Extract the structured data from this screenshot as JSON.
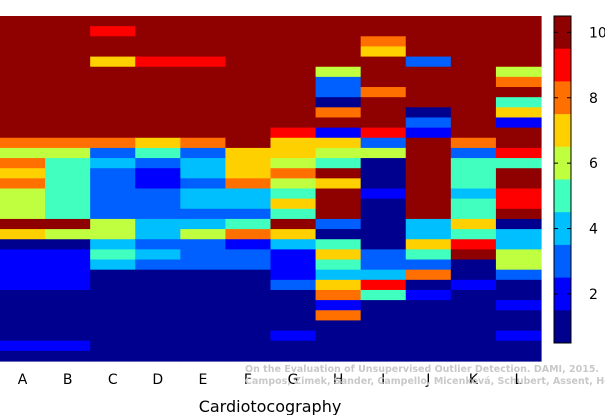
{
  "chart_data": {
    "type": "heatmap",
    "xlabel": "Cardiotocography",
    "columns": [
      "A",
      "B",
      "C",
      "D",
      "E",
      "F",
      "G",
      "H",
      "I",
      "J",
      "K",
      "L"
    ],
    "colorbar": {
      "ticks": [
        2,
        4,
        6,
        8,
        10
      ],
      "min": 0.5,
      "max": 10.5,
      "colormap": "jet"
    },
    "credit": [
      "On the Evaluation of Unsupervised Outlier Detection. DAMI, 2015.",
      "Campos, Zimek, Sander, Campello, Micenková, Schubert, Assent, Houle"
    ],
    "row_count": 34,
    "cells": [
      [
        10,
        10,
        10,
        10,
        10,
        10,
        10,
        10,
        10,
        10,
        10,
        10
      ],
      [
        10,
        10,
        9,
        10,
        10,
        10,
        10,
        10,
        10,
        10,
        10,
        10
      ],
      [
        10,
        10,
        10,
        10,
        10,
        10,
        10,
        10,
        8,
        10,
        10,
        10
      ],
      [
        10,
        10,
        10,
        10,
        10,
        10,
        10,
        10,
        7,
        10,
        10,
        10
      ],
      [
        10,
        10,
        7,
        9,
        9,
        10,
        10,
        10,
        10,
        3,
        10,
        10
      ],
      [
        10,
        10,
        10,
        10,
        10,
        10,
        10,
        6,
        10,
        10,
        10,
        6
      ],
      [
        10,
        10,
        10,
        10,
        10,
        10,
        10,
        3,
        10,
        10,
        10,
        8
      ],
      [
        10,
        10,
        10,
        10,
        10,
        10,
        10,
        3,
        8,
        10,
        10,
        10
      ],
      [
        10,
        10,
        10,
        10,
        10,
        10,
        10,
        1,
        10,
        10,
        10,
        5
      ],
      [
        10,
        10,
        10,
        10,
        10,
        10,
        10,
        8,
        10,
        1,
        10,
        7
      ],
      [
        10,
        10,
        10,
        10,
        10,
        10,
        10,
        10,
        10,
        3,
        10,
        2
      ],
      [
        10,
        10,
        10,
        10,
        10,
        10,
        9,
        2,
        9,
        2,
        10,
        10
      ],
      [
        8,
        8,
        8,
        7,
        8,
        10,
        7,
        7,
        3,
        10,
        8,
        10
      ],
      [
        6,
        6,
        3,
        5,
        3,
        7,
        7,
        6,
        6,
        10,
        3,
        9
      ],
      [
        8,
        5,
        4,
        3,
        4,
        7,
        6,
        5,
        1,
        10,
        5,
        5
      ],
      [
        7,
        5,
        3,
        2,
        4,
        7,
        8,
        10,
        1,
        10,
        5,
        10
      ],
      [
        8,
        5,
        3,
        2,
        3,
        8,
        6,
        7,
        1,
        10,
        5,
        10
      ],
      [
        6,
        5,
        3,
        3,
        4,
        4,
        5,
        10,
        2,
        10,
        4,
        9
      ],
      [
        6,
        5,
        3,
        3,
        4,
        4,
        7,
        10,
        1,
        10,
        5,
        9
      ],
      [
        6,
        5,
        3,
        3,
        3,
        3,
        5,
        10,
        1,
        10,
        5,
        10
      ],
      [
        10,
        10,
        6,
        4,
        4,
        5,
        10,
        3,
        1,
        4,
        7,
        1
      ],
      [
        7,
        6,
        6,
        4,
        6,
        8,
        7,
        1,
        1,
        4,
        5,
        4
      ],
      [
        1,
        1,
        4,
        3,
        3,
        2,
        4,
        5,
        1,
        7,
        9,
        4
      ],
      [
        2,
        2,
        5,
        4,
        3,
        3,
        2,
        7,
        3,
        5,
        10,
        6
      ],
      [
        2,
        2,
        4,
        3,
        3,
        3,
        2,
        5,
        3,
        3,
        1,
        6
      ],
      [
        2,
        2,
        1,
        1,
        1,
        1,
        2,
        4,
        4,
        8,
        1,
        3
      ],
      [
        2,
        2,
        1,
        1,
        1,
        1,
        3,
        7,
        9,
        1,
        2,
        1
      ],
      [
        1,
        1,
        1,
        1,
        1,
        1,
        1,
        8,
        5,
        2,
        1,
        1
      ],
      [
        1,
        1,
        1,
        1,
        1,
        1,
        1,
        2,
        1,
        1,
        1,
        2
      ],
      [
        1,
        1,
        1,
        1,
        1,
        1,
        1,
        8,
        1,
        1,
        1,
        1
      ],
      [
        1,
        1,
        1,
        1,
        1,
        1,
        1,
        1,
        1,
        1,
        1,
        1
      ],
      [
        1,
        1,
        1,
        1,
        1,
        1,
        2,
        1,
        1,
        1,
        1,
        2
      ],
      [
        2,
        2,
        1,
        1,
        1,
        1,
        1,
        1,
        1,
        1,
        1,
        1
      ],
      [
        1,
        1,
        1,
        1,
        1,
        1,
        1,
        1,
        1,
        1,
        1,
        1
      ]
    ]
  }
}
